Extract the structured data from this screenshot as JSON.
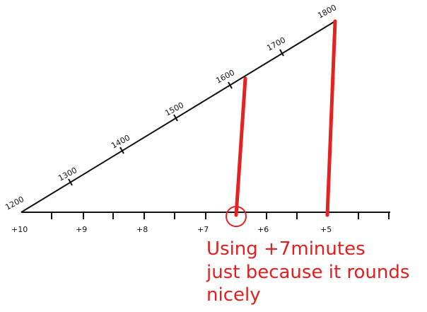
{
  "diagonal_scale": {
    "labels": [
      "1200",
      "1300",
      "1400",
      "1500",
      "1600",
      "1700",
      "1800"
    ]
  },
  "baseline_scale": {
    "labels": [
      "+10",
      "+9",
      "+8",
      "+7",
      "+6",
      "+5"
    ]
  },
  "annotation": {
    "line1": "Using +7minutes",
    "line2": "just because it rounds",
    "line3": "nicely"
  },
  "colors": {
    "ink": "#111111",
    "red": "#e52222"
  }
}
